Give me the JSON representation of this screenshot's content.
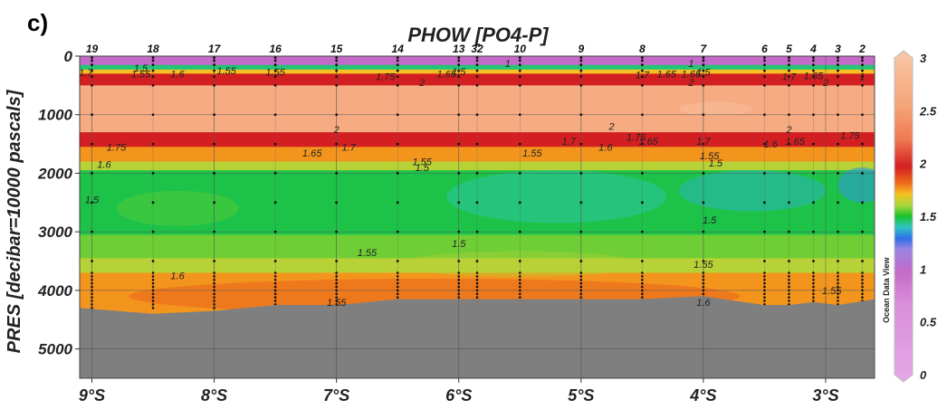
{
  "panel_label": "c)",
  "chart_data": {
    "type": "heatmap",
    "title": "PHOW [PO4-P]",
    "xlabel": "",
    "ylabel": "PRES [decibar=10000 pascals]",
    "x_ticks": [
      "9°S",
      "8°S",
      "7°S",
      "6°S",
      "5°S",
      "4°S",
      "3°S"
    ],
    "x_tick_values": [
      -9,
      -8,
      -7,
      -6,
      -5,
      -4,
      -3
    ],
    "xlim": [
      -9.1,
      -2.6
    ],
    "y_ticks": [
      0,
      1000,
      2000,
      3000,
      4000,
      5000
    ],
    "ylim": [
      0,
      5500
    ],
    "y_reversed": true,
    "colorbar": {
      "min": 0,
      "max": 3,
      "ticks": [
        "0",
        "0.5",
        "1",
        "1.5",
        "2",
        "2.5",
        "3"
      ],
      "label": "Ocean Data View",
      "stops": [
        {
          "v": 0.0,
          "c": "#e6a8e6"
        },
        {
          "v": 0.7,
          "c": "#d98fd9"
        },
        {
          "v": 1.0,
          "c": "#c46ac9"
        },
        {
          "v": 1.2,
          "c": "#9a86e0"
        },
        {
          "v": 1.3,
          "c": "#2f6fe8"
        },
        {
          "v": 1.4,
          "c": "#2ec5c2"
        },
        {
          "v": 1.5,
          "c": "#19c22a"
        },
        {
          "v": 1.6,
          "c": "#a8d63c"
        },
        {
          "v": 1.7,
          "c": "#f5c020"
        },
        {
          "v": 1.8,
          "c": "#f06a1a"
        },
        {
          "v": 1.95,
          "c": "#d41f22"
        },
        {
          "v": 2.2,
          "c": "#f07a52"
        },
        {
          "v": 2.5,
          "c": "#f6a478"
        },
        {
          "v": 3.0,
          "c": "#f9c8a8"
        }
      ]
    },
    "stations": [
      {
        "name": "19",
        "lat": -9.0
      },
      {
        "name": "18",
        "lat": -8.5
      },
      {
        "name": "17",
        "lat": -8.0
      },
      {
        "name": "16",
        "lat": -7.5
      },
      {
        "name": "15",
        "lat": -7.0
      },
      {
        "name": "14",
        "lat": -6.5
      },
      {
        "name": "13",
        "lat": -6.0
      },
      {
        "name": "32",
        "lat": -5.85
      },
      {
        "name": "10",
        "lat": -5.5
      },
      {
        "name": "9",
        "lat": -5.0
      },
      {
        "name": "8",
        "lat": -4.5
      },
      {
        "name": "7",
        "lat": -4.0
      },
      {
        "name": "6",
        "lat": -3.5
      },
      {
        "name": "5",
        "lat": -3.3
      },
      {
        "name": "4",
        "lat": -3.1
      },
      {
        "name": "3",
        "lat": -2.9
      },
      {
        "name": "2",
        "lat": -2.7
      }
    ],
    "seafloor_profile": [
      {
        "lat": -9.1,
        "pres": 4300
      },
      {
        "lat": -8.5,
        "pres": 4400
      },
      {
        "lat": -8.0,
        "pres": 4350
      },
      {
        "lat": -7.5,
        "pres": 4250
      },
      {
        "lat": -7.0,
        "pres": 4250
      },
      {
        "lat": -6.5,
        "pres": 4150
      },
      {
        "lat": -6.0,
        "pres": 4150
      },
      {
        "lat": -5.85,
        "pres": 4150
      },
      {
        "lat": -5.5,
        "pres": 4150
      },
      {
        "lat": -5.0,
        "pres": 4150
      },
      {
        "lat": -4.5,
        "pres": 4150
      },
      {
        "lat": -4.0,
        "pres": 4100
      },
      {
        "lat": -3.5,
        "pres": 4250
      },
      {
        "lat": -3.3,
        "pres": 4250
      },
      {
        "lat": -3.1,
        "pres": 4200
      },
      {
        "lat": -2.9,
        "pres": 4250
      },
      {
        "lat": -2.6,
        "pres": 4150
      }
    ],
    "layers": [
      {
        "top": 0,
        "bottom": 150,
        "value": 1.0
      },
      {
        "top": 150,
        "bottom": 230,
        "value": 1.45
      },
      {
        "top": 230,
        "bottom": 300,
        "value": 1.7
      },
      {
        "top": 300,
        "bottom": 500,
        "value": 1.95
      },
      {
        "top": 500,
        "bottom": 1300,
        "value": 2.6
      },
      {
        "top": 1300,
        "bottom": 1550,
        "value": 1.95
      },
      {
        "top": 1550,
        "bottom": 1800,
        "value": 1.75
      },
      {
        "top": 1800,
        "bottom": 1950,
        "value": 1.62
      },
      {
        "top": 1950,
        "bottom": 3050,
        "value": 1.48
      },
      {
        "top": 3050,
        "bottom": 3450,
        "value": 1.56
      },
      {
        "top": 3450,
        "bottom": 3700,
        "value": 1.62
      },
      {
        "top": 3700,
        "bottom": 5500,
        "value": 1.75
      }
    ],
    "contour_labels": [
      {
        "text": "1.7",
        "lat": -9.05,
        "pres": 280
      },
      {
        "text": "1.5",
        "lat": -8.6,
        "pres": 200
      },
      {
        "text": "1.55",
        "lat": -8.6,
        "pres": 300
      },
      {
        "text": "1.6",
        "lat": -8.3,
        "pres": 300
      },
      {
        "text": "1.55",
        "lat": -7.9,
        "pres": 250
      },
      {
        "text": "1.55",
        "lat": -7.5,
        "pres": 270
      },
      {
        "text": "2",
        "lat": -6.3,
        "pres": 450
      },
      {
        "text": "1.75",
        "lat": -6.6,
        "pres": 350
      },
      {
        "text": "1.65",
        "lat": -6.1,
        "pres": 300
      },
      {
        "text": "1.5",
        "lat": -6.0,
        "pres": 260
      },
      {
        "text": "1",
        "lat": -5.6,
        "pres": 120
      },
      {
        "text": "1",
        "lat": -4.1,
        "pres": 120
      },
      {
        "text": "1.7",
        "lat": -4.5,
        "pres": 320
      },
      {
        "text": "1.65",
        "lat": -4.3,
        "pres": 300
      },
      {
        "text": "1.65",
        "lat": -4.1,
        "pres": 300
      },
      {
        "text": "1.5",
        "lat": -4.0,
        "pres": 270
      },
      {
        "text": "2",
        "lat": -4.1,
        "pres": 450
      },
      {
        "text": "1.7",
        "lat": -3.3,
        "pres": 350
      },
      {
        "text": "1.65",
        "lat": -3.1,
        "pres": 330
      },
      {
        "text": "2",
        "lat": -3.0,
        "pres": 450
      },
      {
        "text": "1",
        "lat": -2.7,
        "pres": 350
      },
      {
        "text": "2",
        "lat": -7.0,
        "pres": 1250
      },
      {
        "text": "1.75",
        "lat": -8.8,
        "pres": 1550
      },
      {
        "text": "1.65",
        "lat": -7.2,
        "pres": 1650
      },
      {
        "text": "1.7",
        "lat": -6.9,
        "pres": 1550
      },
      {
        "text": "1.6",
        "lat": -8.9,
        "pres": 1850
      },
      {
        "text": "1.55",
        "lat": -6.3,
        "pres": 1800
      },
      {
        "text": "1.5",
        "lat": -6.3,
        "pres": 1900
      },
      {
        "text": "1.55",
        "lat": -5.4,
        "pres": 1650
      },
      {
        "text": "1.7",
        "lat": -5.1,
        "pres": 1450
      },
      {
        "text": "1.6",
        "lat": -4.8,
        "pres": 1550
      },
      {
        "text": "2",
        "lat": -4.75,
        "pres": 1200
      },
      {
        "text": "1.75",
        "lat": -4.55,
        "pres": 1380
      },
      {
        "text": "1.65",
        "lat": -4.45,
        "pres": 1450
      },
      {
        "text": "1.7",
        "lat": -4.0,
        "pres": 1450
      },
      {
        "text": "1.55",
        "lat": -3.95,
        "pres": 1700
      },
      {
        "text": "1.5",
        "lat": -3.9,
        "pres": 1820
      },
      {
        "text": "1.6",
        "lat": -3.45,
        "pres": 1500
      },
      {
        "text": "1.65",
        "lat": -3.25,
        "pres": 1450
      },
      {
        "text": "2",
        "lat": -3.3,
        "pres": 1250
      },
      {
        "text": "1.75",
        "lat": -2.8,
        "pres": 1350
      },
      {
        "text": "1.5",
        "lat": -9.0,
        "pres": 2450
      },
      {
        "text": "1.5",
        "lat": -3.95,
        "pres": 2800
      },
      {
        "text": "1.5",
        "lat": -6.0,
        "pres": 3200
      },
      {
        "text": "1.55",
        "lat": -6.75,
        "pres": 3350
      },
      {
        "text": "1.55",
        "lat": -4.0,
        "pres": 3550
      },
      {
        "text": "1.6",
        "lat": -8.3,
        "pres": 3750
      },
      {
        "text": "1.55",
        "lat": -2.95,
        "pres": 4000
      },
      {
        "text": "1.55",
        "lat": -7.0,
        "pres": 4200
      },
      {
        "text": "1.6",
        "lat": -4.0,
        "pres": 4200
      }
    ]
  }
}
